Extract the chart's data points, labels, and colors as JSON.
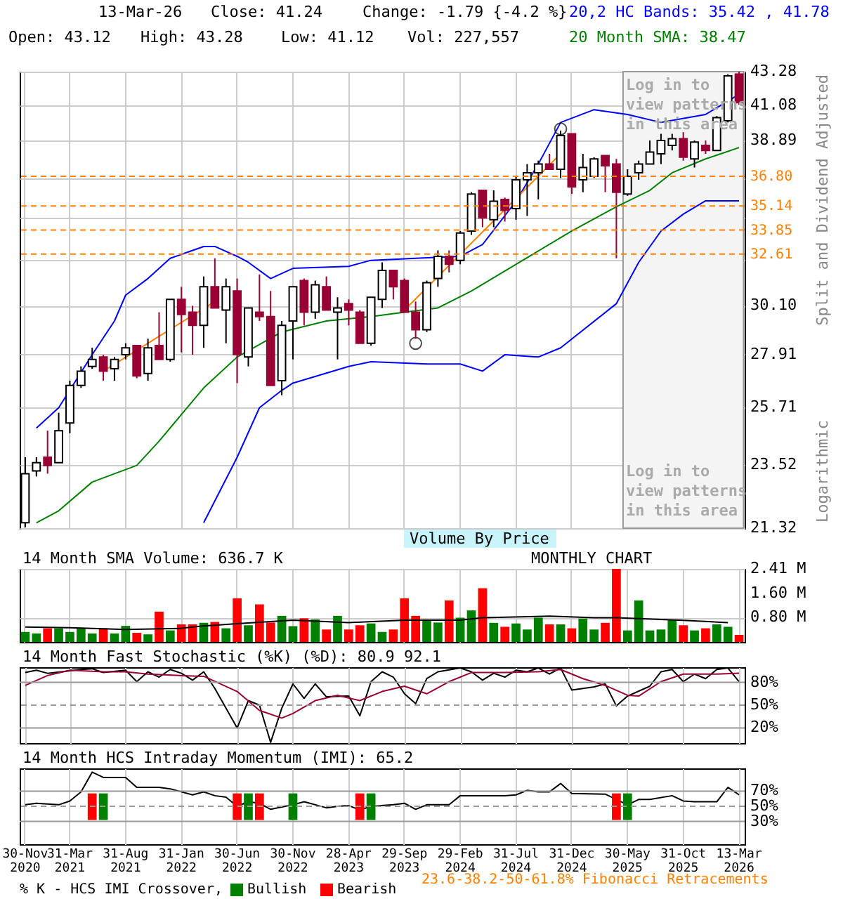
{
  "chart_data": [
    {
      "type": "candlestick",
      "annotations": [
        "13-Mar-26",
        "Close: 41.24",
        "Change: -1.79 {-4.2 %}",
        "Open: 43.12",
        "High: 43.28",
        "Low: 41.12",
        "Vol: 227,557",
        "Logarithmic",
        "Log in to view patterns in this area",
        "23.6-38.2-50-61.8% Fibonacci Retracements",
        "Volume By Price"
      ],
      "ylabel": "Split and Dividend Adjusted",
      "categories": [
        "30-Nov 2020",
        null,
        null,
        null,
        "31-Mar 2021",
        null,
        null,
        null,
        null,
        "31-Aug 2021",
        null,
        null,
        null,
        null,
        "31-Jan 2022",
        null,
        null,
        null,
        null,
        "30-Jun 2022",
        null,
        null,
        null,
        null,
        "30-Nov 2022",
        null,
        null,
        null,
        null,
        "28-Apr 2023",
        null,
        null,
        null,
        null,
        "29-Sep 2023",
        null,
        null,
        null,
        null,
        "29-Feb 2024",
        null,
        null,
        null,
        null,
        "31-Jul 2024",
        null,
        null,
        null,
        null,
        "31-Dec 2024",
        null,
        null,
        null,
        null,
        "30-May 2025",
        null,
        null,
        null,
        null,
        "31-Oct 2025",
        null,
        null,
        null,
        null,
        "13-Mar 2026"
      ],
      "ohlc": [
        [
          21.5,
          23.8,
          21.35,
          23.2
        ],
        [
          23.3,
          23.8,
          23.1,
          23.6
        ],
        [
          23.8,
          24.8,
          23.2,
          23.5
        ],
        [
          23.6,
          25.5,
          23.6,
          24.8
        ],
        [
          25.1,
          26.8,
          24.7,
          26.6
        ],
        [
          26.6,
          27.4,
          26.5,
          27.2
        ],
        [
          27.4,
          28.2,
          27.3,
          27.7
        ],
        [
          27.8,
          27.9,
          26.8,
          27.2
        ],
        [
          27.3,
          27.8,
          26.8,
          27.7
        ],
        [
          27.9,
          28.4,
          27.7,
          28.2
        ],
        [
          28.3,
          28.3,
          26.9,
          27.0
        ],
        [
          27.1,
          28.6,
          26.8,
          28.2
        ],
        [
          28.3,
          29.8,
          27.7,
          27.7
        ],
        [
          27.7,
          30.4,
          27.6,
          30.4
        ],
        [
          30.4,
          31.0,
          28.0,
          29.7
        ],
        [
          29.8,
          30.1,
          27.9,
          29.2
        ],
        [
          29.2,
          31.5,
          28.2,
          31.0
        ],
        [
          31.0,
          32.4,
          30.0,
          30.0
        ],
        [
          29.9,
          31.4,
          28.4,
          31.0
        ],
        [
          30.8,
          31.4,
          26.7,
          27.9
        ],
        [
          27.8,
          30.0,
          27.4,
          30.0
        ],
        [
          29.8,
          31.6,
          29.4,
          29.6
        ],
        [
          29.6,
          30.8,
          26.6,
          26.6
        ],
        [
          26.8,
          29.4,
          26.2,
          29.2
        ],
        [
          29.4,
          31.0,
          27.7,
          31.0
        ],
        [
          31.3,
          31.4,
          29.2,
          29.8
        ],
        [
          29.8,
          31.3,
          29.5,
          31.1
        ],
        [
          31.0,
          31.5,
          29.9,
          29.9
        ],
        [
          29.8,
          30.5,
          27.7,
          30.0
        ],
        [
          30.2,
          30.4,
          29.2,
          29.9
        ],
        [
          29.8,
          29.9,
          28.4,
          28.4
        ],
        [
          28.4,
          30.5,
          28.3,
          30.5
        ],
        [
          30.4,
          32.2,
          30.0,
          31.8
        ],
        [
          31.8,
          31.8,
          30.4,
          31.0
        ],
        [
          31.3,
          31.4,
          29.8,
          29.8
        ],
        [
          29.8,
          30.3,
          28.6,
          29.0
        ],
        [
          29.0,
          31.3,
          28.9,
          31.2
        ],
        [
          31.4,
          32.8,
          31.0,
          32.5
        ],
        [
          32.5,
          32.8,
          31.7,
          32.1
        ],
        [
          32.3,
          33.8,
          32.1,
          33.7
        ],
        [
          33.8,
          35.9,
          33.6,
          35.8
        ],
        [
          36.0,
          36.0,
          34.0,
          34.5
        ],
        [
          34.4,
          36.0,
          34.0,
          35.4
        ],
        [
          35.5,
          35.6,
          34.3,
          34.9
        ],
        [
          35.0,
          36.8,
          34.4,
          36.6
        ],
        [
          36.6,
          37.5,
          34.6,
          37.0
        ],
        [
          37.0,
          37.7,
          35.5,
          37.5
        ],
        [
          37.5,
          38.1,
          37.2,
          37.2
        ],
        [
          37.2,
          39.5,
          36.7,
          39.2
        ],
        [
          39.3,
          39.3,
          35.8,
          36.2
        ],
        [
          36.6,
          38.1,
          35.9,
          37.3
        ],
        [
          36.8,
          37.9,
          36.7,
          37.8
        ],
        [
          38.0,
          38.0,
          35.9,
          37.4
        ],
        [
          37.5,
          37.8,
          32.4,
          35.9
        ],
        [
          35.8,
          37.2,
          35.7,
          36.8
        ],
        [
          37.0,
          37.7,
          36.6,
          37.5
        ],
        [
          37.5,
          38.9,
          37.5,
          38.2
        ],
        [
          38.1,
          39.3,
          37.5,
          38.9
        ],
        [
          38.6,
          39.3,
          38.3,
          39.0
        ],
        [
          39.0,
          39.4,
          37.7,
          37.9
        ],
        [
          37.8,
          38.9,
          37.3,
          38.8
        ],
        [
          38.6,
          38.9,
          38.1,
          38.3
        ],
        [
          38.3,
          40.4,
          38.3,
          40.3
        ],
        [
          40.1,
          43.1,
          40.0,
          43.0
        ],
        [
          43.12,
          43.28,
          41.12,
          41.24
        ]
      ],
      "colors": [
        "#ffffff",
        "#ffffff",
        "#990033",
        "#ffffff",
        "#ffffff",
        "#ffffff",
        "#ffffff",
        "#990033",
        "#ffffff",
        "#ffffff",
        "#990033",
        "#ffffff",
        "#990033",
        "#ffffff",
        "#990033",
        "#990033",
        "#ffffff",
        "#990033",
        "#ffffff",
        "#990033",
        "#ffffff",
        "#990033",
        "#990033",
        "#ffffff",
        "#ffffff",
        "#990033",
        "#ffffff",
        "#990033",
        "#ffffff",
        "#990033",
        "#990033",
        "#ffffff",
        "#ffffff",
        "#990033",
        "#990033",
        "#990033",
        "#ffffff",
        "#ffffff",
        "#990033",
        "#ffffff",
        "#ffffff",
        "#990033",
        "#ffffff",
        "#990033",
        "#ffffff",
        "#ffffff",
        "#ffffff",
        "#990033",
        "#ffffff",
        "#990033",
        "#ffffff",
        "#ffffff",
        "#990033",
        "#990033",
        "#ffffff",
        "#ffffff",
        "#ffffff",
        "#ffffff",
        "#ffffff",
        "#990033",
        "#ffffff",
        "#990033",
        "#ffffff",
        "#ffffff",
        "#990033"
      ],
      "series": [
        {
          "name": "20,2 HC Bands: 35.42 , 41.78",
          "type": "line",
          "color": "#0000ff",
          "values": [
            null,
            24.9,
            null,
            25.7,
            null,
            null,
            27.9,
            null,
            29.4,
            30.6,
            null,
            31.4,
            null,
            32.4,
            null,
            null,
            33.0,
            33.0,
            null,
            32.5,
            32.2,
            null,
            31.4,
            null,
            31.9,
            null,
            null,
            null,
            null,
            32.0,
            null,
            32.3,
            null,
            null,
            null,
            32.4,
            null,
            null,
            null,
            32.5,
            null,
            33.1,
            null,
            null,
            35.4,
            null,
            37.5,
            null,
            40.0,
            null,
            null,
            40.8,
            null,
            null,
            40.5,
            null,
            null,
            40.0,
            null,
            null,
            null,
            40.5,
            null,
            null,
            41.78
          ]
        },
        {
          "type": "line",
          "color": "#0000ff",
          "values": [
            null,
            null,
            null,
            null,
            null,
            null,
            null,
            null,
            null,
            null,
            null,
            null,
            null,
            null,
            null,
            null,
            21.5,
            null,
            null,
            23.8,
            null,
            25.7,
            null,
            26.4,
            26.7,
            null,
            null,
            null,
            null,
            27.4,
            null,
            27.6,
            null,
            null,
            null,
            null,
            27.5,
            null,
            null,
            27.5,
            null,
            27.2,
            null,
            27.9,
            null,
            null,
            27.8,
            null,
            28.2,
            null,
            null,
            null,
            null,
            30.2,
            null,
            32.2,
            null,
            33.8,
            null,
            34.7,
            null,
            35.42,
            null,
            null,
            35.42
          ]
        },
        {
          "name": "20 Month SMA: 38.47",
          "type": "line",
          "color": "#008000",
          "values": [
            null,
            21.5,
            null,
            21.9,
            null,
            null,
            22.9,
            null,
            null,
            null,
            23.5,
            null,
            24.4,
            null,
            null,
            null,
            26.5,
            null,
            null,
            27.8,
            null,
            null,
            null,
            28.9,
            null,
            null,
            null,
            29.4,
            null,
            null,
            null,
            29.6,
            null,
            null,
            29.8,
            null,
            null,
            30.0,
            null,
            null,
            30.8,
            null,
            null,
            null,
            32.1,
            null,
            null,
            null,
            null,
            33.8,
            null,
            null,
            null,
            35.1,
            null,
            null,
            36.0,
            null,
            37.0,
            null,
            null,
            37.8,
            null,
            null,
            38.47
          ]
        },
        {
          "type": "line",
          "color": "#ff8000",
          "values": [
            null,
            null,
            null,
            null,
            null,
            null,
            null,
            27.2,
            null,
            null,
            null,
            null,
            null,
            null,
            null,
            null,
            null,
            30.3,
            null,
            null,
            null,
            null,
            null,
            null,
            null,
            null,
            null,
            null,
            null,
            null,
            null,
            null,
            null,
            null,
            null,
            null,
            null,
            null,
            null,
            null,
            null,
            null,
            null,
            null,
            null,
            null,
            null,
            null,
            null,
            null,
            null,
            null,
            null,
            null,
            null,
            null,
            null,
            null,
            null,
            null,
            null,
            null,
            null,
            null,
            null
          ]
        },
        {
          "type": "line",
          "color": "#ff8000",
          "values": [
            null,
            null,
            null,
            null,
            null,
            null,
            null,
            null,
            null,
            null,
            null,
            null,
            null,
            null,
            null,
            null,
            null,
            null,
            null,
            null,
            null,
            null,
            null,
            null,
            null,
            null,
            null,
            null,
            null,
            null,
            null,
            null,
            null,
            null,
            29.9,
            null,
            null,
            null,
            null,
            null,
            null,
            null,
            null,
            null,
            null,
            null,
            null,
            null,
            38.1,
            null,
            null,
            null,
            null,
            null,
            null,
            null,
            null,
            null,
            null,
            null,
            null,
            null,
            null,
            null,
            null
          ]
        },
        {
          "type": "scatter",
          "marker": "circle",
          "color": "#000000",
          "values": [
            null,
            null,
            null,
            null,
            null,
            null,
            null,
            null,
            null,
            null,
            null,
            null,
            null,
            null,
            null,
            null,
            null,
            null,
            null,
            null,
            null,
            null,
            null,
            null,
            null,
            null,
            null,
            null,
            null,
            null,
            null,
            null,
            null,
            null,
            null,
            28.4,
            null,
            null,
            null,
            null,
            null,
            null,
            null,
            null,
            null,
            null,
            null,
            null,
            39.6,
            null,
            null,
            null,
            null,
            null,
            null,
            null,
            null,
            null,
            null,
            null,
            null,
            null,
            null,
            null,
            null
          ]
        }
      ],
      "ref_lines": [
        {
          "axis": "y",
          "value": 36.8,
          "label": "36.80",
          "color": "#ff8000",
          "line_style": "dashed"
        },
        {
          "axis": "y",
          "value": 35.14,
          "label": "35.14",
          "color": "#ff8000",
          "line_style": "dashed"
        },
        {
          "axis": "y",
          "value": 33.85,
          "label": "33.85",
          "color": "#ff8000",
          "line_style": "dashed"
        },
        {
          "axis": "y",
          "value": 32.61,
          "label": "32.61",
          "color": "#ff8000",
          "line_style": "dashed"
        }
      ],
      "bands": [
        {
          "axis": "x",
          "from": "30-May 2025",
          "to": "13-Mar 2026",
          "label": "Log in to view patterns in this area",
          "color": "#f4f4f4"
        }
      ],
      "ylim": [
        21.32,
        43.28
      ],
      "yticks": [
        21.32,
        23.52,
        25.71,
        27.91,
        {
          "value": 30.1,
          "label": "30.10"
        },
        {
          "value": 32.3,
          "label": null
        },
        {
          "value": 34.5,
          "label": null
        },
        {
          "value": 36.69,
          "label": null
        },
        38.89,
        41.08,
        43.28
      ],
      "log": true,
      "grid": true,
      "legend": "top right",
      "tick_labels": "y"
    },
    {
      "type": "bar",
      "title": "14 Month SMA Volume: 636.7 K",
      "annotations": [
        "MONTHLY CHART"
      ],
      "categories": [
        "30-Nov 2020",
        null,
        null,
        null,
        "31-Mar 2021",
        null,
        null,
        null,
        null,
        "31-Aug 2021",
        null,
        null,
        null,
        null,
        "31-Jan 2022",
        null,
        null,
        null,
        null,
        "30-Jun 2022",
        null,
        null,
        null,
        null,
        "30-Nov 2022",
        null,
        null,
        null,
        null,
        "28-Apr 2023",
        null,
        null,
        null,
        null,
        "29-Sep 2023",
        null,
        null,
        null,
        null,
        "29-Feb 2024",
        null,
        null,
        null,
        null,
        "31-Jul 2024",
        null,
        null,
        null,
        null,
        "31-Dec 2024",
        null,
        null,
        null,
        null,
        "30-May 2025",
        null,
        null,
        null,
        null,
        "31-Oct 2025",
        null,
        null,
        null,
        null,
        "13-Mar 2026"
      ],
      "series": [
        {
          "type": "bar",
          "colors": [
            "#008000",
            "#008000",
            "#ff0000",
            "#008000",
            "#008000",
            "#008000",
            "#008000",
            "#ff0000",
            "#008000",
            "#008000",
            "#ff0000",
            "#008000",
            "#ff0000",
            "#008000",
            "#ff0000",
            "#ff0000",
            "#008000",
            "#ff0000",
            "#008000",
            "#ff0000",
            "#008000",
            "#ff0000",
            "#ff0000",
            "#008000",
            "#008000",
            "#ff0000",
            "#008000",
            "#ff0000",
            "#008000",
            "#ff0000",
            "#ff0000",
            "#008000",
            "#008000",
            "#ff0000",
            "#ff0000",
            "#ff0000",
            "#008000",
            "#008000",
            "#ff0000",
            "#008000",
            "#008000",
            "#ff0000",
            "#008000",
            "#ff0000",
            "#008000",
            "#008000",
            "#008000",
            "#ff0000",
            "#008000",
            "#ff0000",
            "#008000",
            "#008000",
            "#ff0000",
            "#ff0000",
            "#008000",
            "#008000",
            "#008000",
            "#008000",
            "#008000",
            "#ff0000",
            "#008000",
            "#ff0000",
            "#008000",
            "#008000",
            "#ff0000"
          ],
          "values": [
            0.33,
            0.28,
            0.45,
            0.45,
            0.33,
            0.45,
            0.28,
            0.45,
            0.28,
            0.53,
            0.3,
            0.25,
            1.0,
            0.38,
            0.58,
            0.58,
            0.63,
            0.66,
            0.45,
            1.44,
            0.55,
            1.24,
            0.64,
            0.86,
            0.52,
            0.78,
            0.74,
            0.41,
            0.86,
            0.41,
            0.55,
            0.61,
            0.33,
            0.41,
            1.44,
            0.86,
            0.74,
            0.64,
            1.37,
            0.8,
            1.04,
            1.77,
            0.63,
            0.5,
            0.61,
            0.41,
            0.8,
            0.58,
            0.58,
            0.45,
            0.77,
            0.41,
            0.63,
            2.41,
            0.38,
            1.37,
            0.38,
            0.41,
            0.72,
            0.55,
            0.38,
            0.45,
            0.58,
            0.5,
            0.23
          ]
        },
        {
          "type": "line",
          "color": "#000000",
          "values": [
            0.49,
            null,
            null,
            null,
            0.47,
            null,
            null,
            null,
            null,
            0.41,
            null,
            null,
            null,
            null,
            0.45,
            null,
            0.53,
            null,
            null,
            0.6,
            null,
            null,
            null,
            null,
            0.72,
            null,
            null,
            null,
            null,
            0.64,
            null,
            null,
            null,
            null,
            0.72,
            null,
            null,
            null,
            null,
            0.72,
            null,
            0.8,
            null,
            null,
            null,
            null,
            null,
            0.85,
            null,
            null,
            null,
            0.8,
            null,
            0.8,
            null,
            null,
            null,
            null,
            null,
            0.71,
            null,
            null,
            null,
            0.64,
            null
          ]
        }
      ],
      "ylim": [
        0,
        2.41
      ],
      "yticks": [
        {
          "value": 0.8,
          "label": "0.80 M"
        },
        {
          "value": 1.6,
          "label": "1.60 M"
        },
        {
          "value": 2.41,
          "label": "2.41 M"
        }
      ],
      "grid": true,
      "tick_labels": "y"
    },
    {
      "type": "line",
      "title": "14 Month Fast Stochastic (%K) (%D): 80.9 92.1",
      "categories": [
        "30-Nov 2020",
        null,
        null,
        null,
        "31-Mar 2021",
        null,
        null,
        null,
        null,
        "31-Aug 2021",
        null,
        null,
        null,
        null,
        "31-Jan 2022",
        null,
        null,
        null,
        null,
        "30-Jun 2022",
        null,
        null,
        null,
        null,
        "30-Nov 2022",
        null,
        null,
        null,
        null,
        "28-Apr 2023",
        null,
        null,
        null,
        null,
        "29-Sep 2023",
        null,
        null,
        null,
        null,
        "29-Feb 2024",
        null,
        null,
        null,
        null,
        "31-Jul 2024",
        null,
        null,
        null,
        null,
        "31-Dec 2024",
        null,
        null,
        null,
        null,
        "30-May 2025",
        null,
        null,
        null,
        null,
        "31-Oct 2025",
        null,
        null,
        null,
        null,
        "13-Mar 2026"
      ],
      "series": [
        {
          "color": "#000000",
          "values": [
            93,
            96,
            92,
            null,
            null,
            97,
            98,
            93,
            null,
            96,
            81,
            94,
            87,
            97,
            92,
            83,
            94,
            72,
            null,
            20,
            56,
            50,
            1,
            46,
            78,
            59,
            78,
            61,
            null,
            62,
            36,
            81,
            94,
            87,
            65,
            52,
            85,
            94,
            null,
            99,
            94,
            83,
            92,
            87,
            96,
            94,
            99,
            91,
            99,
            70,
            null,
            74,
            78,
            49,
            62,
            null,
            75,
            94,
            97,
            81,
            91,
            85,
            97,
            99,
            80.9
          ]
        },
        {
          "color": "#990033",
          "values": [
            76,
            null,
            89,
            null,
            96,
            null,
            null,
            94,
            null,
            94,
            null,
            91,
            null,
            null,
            89,
            null,
            88,
            null,
            null,
            68,
            null,
            43,
            null,
            33,
            39,
            null,
            56,
            null,
            63,
            null,
            56,
            null,
            68,
            null,
            75,
            null,
            65,
            null,
            81,
            null,
            93,
            null,
            null,
            93,
            null,
            null,
            94,
            null,
            97,
            null,
            85,
            null,
            76,
            null,
            63,
            62,
            null,
            81,
            null,
            91,
            null,
            null,
            91,
            null,
            92.1
          ]
        }
      ],
      "ref_lines": [
        {
          "axis": "y",
          "value": 80,
          "color": "#999999",
          "line_style": "solid"
        },
        {
          "axis": "y",
          "value": 50,
          "color": "#999999",
          "line_style": "dashed"
        },
        {
          "axis": "y",
          "value": 20,
          "color": "#999999",
          "line_style": "solid"
        }
      ],
      "ylim": [
        0,
        100
      ],
      "yticks": [
        {
          "value": 20,
          "label": "20%"
        },
        {
          "value": 50,
          "label": "50%"
        },
        {
          "value": 80,
          "label": "80%"
        }
      ],
      "grid": "x",
      "tick_labels": "y"
    },
    {
      "type": "line",
      "title": "14 Month HCS Intraday Momentum (IMI): 65.2",
      "categories": [
        "30-Nov 2020",
        null,
        null,
        null,
        "31-Mar 2021",
        null,
        null,
        null,
        null,
        "31-Aug 2021",
        null,
        null,
        null,
        null,
        "31-Jan 2022",
        null,
        null,
        null,
        null,
        "30-Jun 2022",
        null,
        null,
        null,
        null,
        "30-Nov 2022",
        null,
        null,
        null,
        null,
        "28-Apr 2023",
        null,
        null,
        null,
        null,
        "29-Sep 2023",
        null,
        null,
        null,
        null,
        "29-Feb 2024",
        null,
        null,
        null,
        null,
        "31-Jul 2024",
        null,
        null,
        null,
        null,
        "31-Dec 2024",
        null,
        null,
        null,
        null,
        "30-May 2025",
        null,
        null,
        null,
        null,
        "31-Oct 2025",
        null,
        null,
        null,
        null,
        "13-Mar 2026"
      ],
      "series": [
        {
          "type": "line",
          "color": "#000000",
          "values": [
            52,
            54,
            null,
            52,
            57,
            69,
            95,
            88,
            null,
            88,
            75,
            null,
            75,
            73,
            null,
            65,
            69,
            64,
            62,
            50,
            56,
            54,
            46,
            null,
            52,
            56,
            null,
            48,
            50,
            51,
            45,
            50,
            null,
            52,
            54,
            46,
            52,
            null,
            52,
            64,
            null,
            64,
            null,
            64,
            65,
            71,
            69,
            69,
            80,
            67,
            null,
            null,
            66,
            59,
            52,
            59,
            59,
            null,
            64,
            57,
            56,
            null,
            56,
            75,
            65.2
          ]
        },
        {
          "type": "bar",
          "name": "Bullish",
          "color": "#008000",
          "base": [
            null,
            null,
            null,
            null,
            null,
            null,
            null,
            32,
            null,
            null,
            null,
            null,
            null,
            null,
            null,
            null,
            null,
            null,
            null,
            null,
            32,
            null,
            null,
            null,
            32,
            null,
            null,
            null,
            null,
            null,
            null,
            32,
            null,
            null,
            null,
            null,
            null,
            null,
            null,
            null,
            null,
            null,
            null,
            null,
            null,
            null,
            null,
            null,
            null,
            null,
            null,
            null,
            null,
            null,
            32,
            null,
            null,
            null,
            null,
            null,
            null,
            null,
            null,
            null,
            null
          ],
          "values": [
            null,
            null,
            null,
            null,
            null,
            null,
            null,
            35,
            null,
            null,
            null,
            null,
            null,
            null,
            null,
            null,
            null,
            null,
            null,
            null,
            35,
            null,
            null,
            null,
            35,
            null,
            null,
            null,
            null,
            null,
            null,
            35,
            null,
            null,
            null,
            null,
            null,
            null,
            null,
            null,
            null,
            null,
            null,
            null,
            null,
            null,
            null,
            null,
            null,
            null,
            null,
            null,
            null,
            null,
            35,
            null,
            null,
            null,
            null,
            null,
            null,
            null,
            null,
            null,
            null
          ]
        },
        {
          "type": "bar",
          "name": "Bearish",
          "color": "#ff0000",
          "base": [
            null,
            null,
            null,
            null,
            null,
            null,
            32,
            null,
            null,
            null,
            null,
            null,
            null,
            null,
            null,
            null,
            null,
            null,
            null,
            32,
            null,
            32,
            null,
            null,
            null,
            null,
            null,
            null,
            null,
            null,
            32,
            null,
            null,
            null,
            null,
            null,
            null,
            null,
            null,
            null,
            null,
            null,
            null,
            null,
            null,
            null,
            null,
            null,
            null,
            null,
            null,
            null,
            null,
            32,
            null,
            null,
            null,
            null,
            null,
            null,
            null,
            null,
            null,
            null,
            null
          ],
          "values": [
            null,
            null,
            null,
            null,
            null,
            null,
            35,
            null,
            null,
            null,
            null,
            null,
            null,
            null,
            null,
            null,
            null,
            null,
            null,
            35,
            null,
            35,
            null,
            null,
            null,
            null,
            null,
            null,
            null,
            null,
            35,
            null,
            null,
            null,
            null,
            null,
            null,
            null,
            null,
            null,
            null,
            null,
            null,
            null,
            null,
            null,
            null,
            null,
            null,
            null,
            null,
            null,
            null,
            35,
            null,
            null,
            null,
            null,
            null,
            null,
            null,
            null,
            null,
            null,
            null
          ]
        }
      ],
      "ref_lines": [
        {
          "axis": "y",
          "value": 70,
          "color": "#999999",
          "line_style": "solid"
        },
        {
          "axis": "y",
          "value": 50,
          "color": "#999999",
          "line_style": "dashed"
        },
        {
          "axis": "y",
          "value": 30,
          "color": "#999999",
          "line_style": "solid"
        }
      ],
      "ylim": [
        0,
        100
      ],
      "yticks": [
        {
          "value": 30,
          "label": "30%"
        },
        {
          "value": 50,
          "label": "50%"
        },
        {
          "value": 70,
          "label": "70%"
        }
      ],
      "legend_title": "% K - HCS IMI Crossover,",
      "legend": "bottom",
      "grid": "x"
    }
  ]
}
